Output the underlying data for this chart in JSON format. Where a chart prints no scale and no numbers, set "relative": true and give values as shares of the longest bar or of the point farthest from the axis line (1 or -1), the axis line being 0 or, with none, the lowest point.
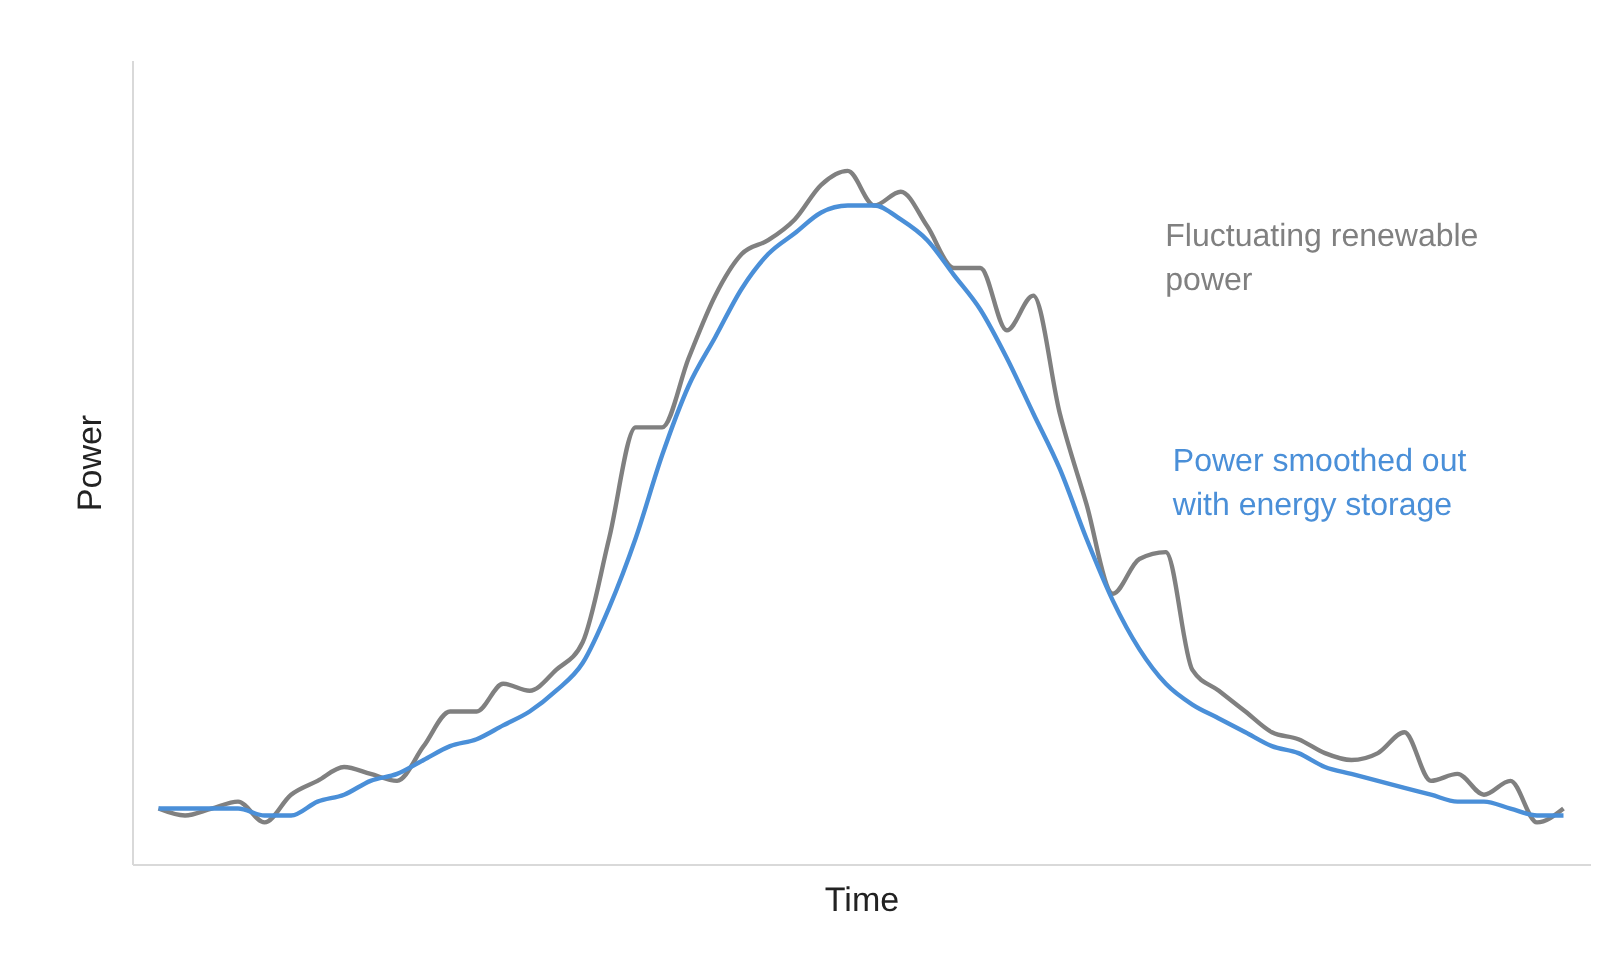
{
  "chart_data": {
    "type": "line",
    "relative": true,
    "xlabel": "Time",
    "ylabel": "Power",
    "categories": [
      null,
      null,
      null,
      null,
      null,
      null,
      null,
      null,
      null,
      null,
      null,
      null,
      null,
      null,
      null,
      null,
      null,
      null,
      null,
      null,
      null,
      null,
      null,
      null,
      null,
      null,
      null,
      null,
      null,
      null,
      null,
      null,
      null,
      null,
      null,
      null,
      null,
      null,
      null,
      null,
      null,
      null,
      null,
      null,
      null,
      null,
      null,
      null,
      null,
      null,
      null,
      null,
      null,
      null
    ],
    "series": [
      {
        "name": "Fluctuating renewable power",
        "color": "#808080",
        "values": [
          0.08,
          0.07,
          0.08,
          0.09,
          0.06,
          0.1,
          0.12,
          0.14,
          0.13,
          0.12,
          0.17,
          0.22,
          0.22,
          0.26,
          0.25,
          0.28,
          0.32,
          0.47,
          0.63,
          0.63,
          0.73,
          0.82,
          0.88,
          0.9,
          0.93,
          0.98,
          1,
          0.95,
          0.97,
          0.92,
          0.86,
          0.86,
          0.77,
          0.82,
          0.65,
          0.52,
          0.39,
          0.44,
          0.45,
          0.28,
          0.25,
          0.22,
          0.19,
          0.18,
          0.16,
          0.15,
          0.16,
          0.19,
          0.12,
          0.13,
          0.1,
          0.12,
          0.06,
          0.08
        ]
      },
      {
        "name": "Power smoothed out with energy storage",
        "color": "#4a8fd8",
        "values": [
          0.08,
          0.08,
          0.08,
          0.08,
          0.07,
          0.07,
          0.09,
          0.1,
          0.12,
          0.13,
          0.15,
          0.17,
          0.18,
          0.2,
          0.22,
          0.25,
          0.29,
          0.37,
          0.47,
          0.59,
          0.69,
          0.76,
          0.83,
          0.88,
          0.91,
          0.94,
          0.95,
          0.95,
          0.93,
          0.9,
          0.85,
          0.8,
          0.73,
          0.65,
          0.57,
          0.47,
          0.38,
          0.31,
          0.26,
          0.23,
          0.21,
          0.19,
          0.17,
          0.16,
          0.14,
          0.13,
          0.12,
          0.11,
          0.1,
          0.09,
          0.09,
          0.08,
          0.07,
          0.07
        ]
      }
    ]
  }
}
